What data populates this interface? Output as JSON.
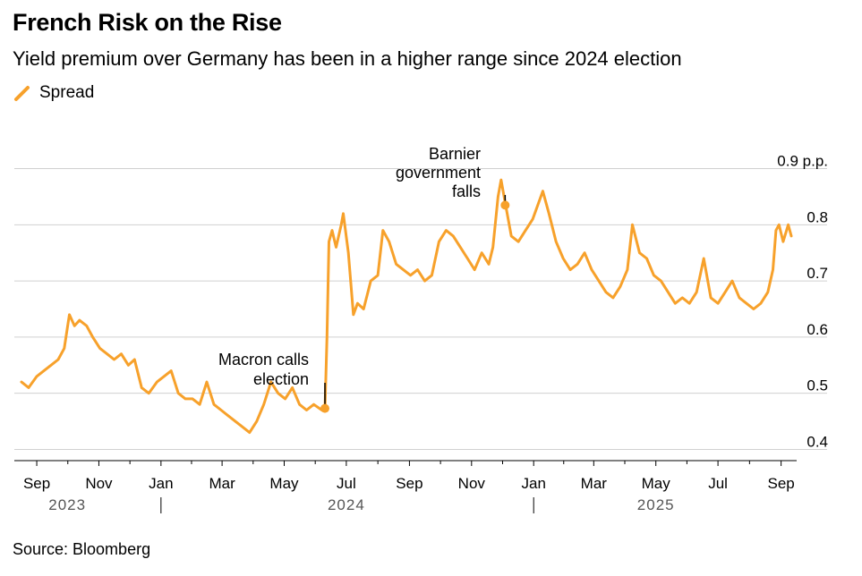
{
  "title": "French Risk on the Rise",
  "subtitle": "Yield premium over Germany has been in a higher range since 2024 election",
  "source": "Source: Bloomberg",
  "colors": {
    "series": "#F7A12B",
    "grid": "#d0d0d0",
    "axis": "#000000",
    "year_label": "#555555"
  },
  "chart_data": {
    "type": "line",
    "series": [
      {
        "name": "Spread",
        "points": [
          [
            "2023-08-17",
            0.52
          ],
          [
            "2023-08-24",
            0.51
          ],
          [
            "2023-09-01",
            0.53
          ],
          [
            "2023-09-08",
            0.54
          ],
          [
            "2023-09-15",
            0.55
          ],
          [
            "2023-09-22",
            0.56
          ],
          [
            "2023-09-28",
            0.58
          ],
          [
            "2023-10-03",
            0.64
          ],
          [
            "2023-10-08",
            0.62
          ],
          [
            "2023-10-13",
            0.63
          ],
          [
            "2023-10-20",
            0.62
          ],
          [
            "2023-10-26",
            0.6
          ],
          [
            "2023-11-02",
            0.58
          ],
          [
            "2023-11-09",
            0.57
          ],
          [
            "2023-11-16",
            0.56
          ],
          [
            "2023-11-23",
            0.57
          ],
          [
            "2023-11-30",
            0.55
          ],
          [
            "2023-12-06",
            0.56
          ],
          [
            "2023-12-13",
            0.51
          ],
          [
            "2023-12-20",
            0.5
          ],
          [
            "2023-12-28",
            0.52
          ],
          [
            "2024-01-04",
            0.53
          ],
          [
            "2024-01-11",
            0.54
          ],
          [
            "2024-01-18",
            0.5
          ],
          [
            "2024-01-25",
            0.49
          ],
          [
            "2024-02-01",
            0.49
          ],
          [
            "2024-02-08",
            0.48
          ],
          [
            "2024-02-15",
            0.52
          ],
          [
            "2024-02-22",
            0.48
          ],
          [
            "2024-02-29",
            0.47
          ],
          [
            "2024-03-07",
            0.46
          ],
          [
            "2024-03-14",
            0.45
          ],
          [
            "2024-03-21",
            0.44
          ],
          [
            "2024-03-28",
            0.43
          ],
          [
            "2024-04-04",
            0.45
          ],
          [
            "2024-04-11",
            0.48
          ],
          [
            "2024-04-18",
            0.52
          ],
          [
            "2024-04-25",
            0.5
          ],
          [
            "2024-05-02",
            0.49
          ],
          [
            "2024-05-09",
            0.51
          ],
          [
            "2024-05-16",
            0.48
          ],
          [
            "2024-05-23",
            0.47
          ],
          [
            "2024-05-30",
            0.48
          ],
          [
            "2024-06-07",
            0.47
          ],
          [
            "2024-06-10",
            0.47
          ],
          [
            "2024-06-12",
            0.6
          ],
          [
            "2024-06-14",
            0.77
          ],
          [
            "2024-06-17",
            0.79
          ],
          [
            "2024-06-21",
            0.76
          ],
          [
            "2024-06-26",
            0.8
          ],
          [
            "2024-06-28",
            0.82
          ],
          [
            "2024-07-03",
            0.75
          ],
          [
            "2024-07-08",
            0.64
          ],
          [
            "2024-07-12",
            0.66
          ],
          [
            "2024-07-18",
            0.65
          ],
          [
            "2024-07-25",
            0.7
          ],
          [
            "2024-08-01",
            0.71
          ],
          [
            "2024-08-06",
            0.79
          ],
          [
            "2024-08-12",
            0.77
          ],
          [
            "2024-08-19",
            0.73
          ],
          [
            "2024-08-26",
            0.72
          ],
          [
            "2024-09-02",
            0.71
          ],
          [
            "2024-09-09",
            0.72
          ],
          [
            "2024-09-16",
            0.7
          ],
          [
            "2024-09-23",
            0.71
          ],
          [
            "2024-09-30",
            0.77
          ],
          [
            "2024-10-07",
            0.79
          ],
          [
            "2024-10-14",
            0.78
          ],
          [
            "2024-10-21",
            0.76
          ],
          [
            "2024-10-28",
            0.74
          ],
          [
            "2024-11-04",
            0.72
          ],
          [
            "2024-11-11",
            0.75
          ],
          [
            "2024-11-18",
            0.73
          ],
          [
            "2024-11-22",
            0.76
          ],
          [
            "2024-11-27",
            0.85
          ],
          [
            "2024-11-30",
            0.88
          ],
          [
            "2024-12-04",
            0.84
          ],
          [
            "2024-12-10",
            0.78
          ],
          [
            "2024-12-17",
            0.77
          ],
          [
            "2024-12-24",
            0.79
          ],
          [
            "2024-12-31",
            0.81
          ],
          [
            "2025-01-06",
            0.84
          ],
          [
            "2025-01-10",
            0.86
          ],
          [
            "2025-01-16",
            0.82
          ],
          [
            "2025-01-23",
            0.77
          ],
          [
            "2025-01-30",
            0.74
          ],
          [
            "2025-02-06",
            0.72
          ],
          [
            "2025-02-13",
            0.73
          ],
          [
            "2025-02-20",
            0.75
          ],
          [
            "2025-02-27",
            0.72
          ],
          [
            "2025-03-06",
            0.7
          ],
          [
            "2025-03-13",
            0.68
          ],
          [
            "2025-03-20",
            0.67
          ],
          [
            "2025-03-27",
            0.69
          ],
          [
            "2025-04-03",
            0.72
          ],
          [
            "2025-04-08",
            0.8
          ],
          [
            "2025-04-15",
            0.75
          ],
          [
            "2025-04-22",
            0.74
          ],
          [
            "2025-04-29",
            0.71
          ],
          [
            "2025-05-06",
            0.7
          ],
          [
            "2025-05-13",
            0.68
          ],
          [
            "2025-05-20",
            0.66
          ],
          [
            "2025-05-27",
            0.67
          ],
          [
            "2025-06-03",
            0.66
          ],
          [
            "2025-06-10",
            0.68
          ],
          [
            "2025-06-17",
            0.74
          ],
          [
            "2025-06-24",
            0.67
          ],
          [
            "2025-07-01",
            0.66
          ],
          [
            "2025-07-08",
            0.68
          ],
          [
            "2025-07-15",
            0.7
          ],
          [
            "2025-07-22",
            0.67
          ],
          [
            "2025-07-29",
            0.66
          ],
          [
            "2025-08-05",
            0.65
          ],
          [
            "2025-08-12",
            0.66
          ],
          [
            "2025-08-19",
            0.68
          ],
          [
            "2025-08-24",
            0.72
          ],
          [
            "2025-08-27",
            0.79
          ],
          [
            "2025-08-30",
            0.8
          ],
          [
            "2025-09-03",
            0.77
          ],
          [
            "2025-09-08",
            0.8
          ],
          [
            "2025-09-11",
            0.78
          ]
        ]
      }
    ],
    "ylim": [
      0.38,
      0.92
    ],
    "y_ticks": [
      {
        "value": 0.9,
        "label": "0.9 p.p."
      },
      {
        "value": 0.8,
        "label": "0.8"
      },
      {
        "value": 0.7,
        "label": "0.7"
      },
      {
        "value": 0.6,
        "label": "0.6"
      },
      {
        "value": 0.5,
        "label": "0.5"
      },
      {
        "value": 0.4,
        "label": "0.4"
      }
    ],
    "x_ticks": [
      {
        "date": "2023-09-01",
        "label": "Sep"
      },
      {
        "date": "2023-11-01",
        "label": "Nov"
      },
      {
        "date": "2024-01-01",
        "label": "Jan"
      },
      {
        "date": "2024-03-01",
        "label": "Mar"
      },
      {
        "date": "2024-05-01",
        "label": "May"
      },
      {
        "date": "2024-07-01",
        "label": "Jul"
      },
      {
        "date": "2024-09-01",
        "label": "Sep"
      },
      {
        "date": "2024-11-01",
        "label": "Nov"
      },
      {
        "date": "2025-01-01",
        "label": "Jan"
      },
      {
        "date": "2025-03-01",
        "label": "Mar"
      },
      {
        "date": "2025-05-01",
        "label": "May"
      },
      {
        "date": "2025-07-01",
        "label": "Jul"
      },
      {
        "date": "2025-09-01",
        "label": "Sep"
      }
    ],
    "year_labels": [
      {
        "date": "2023-10-01",
        "label": "2023"
      },
      {
        "date": "2024-07-01",
        "label": "2024"
      },
      {
        "date": "2025-05-01",
        "label": "2025"
      }
    ],
    "year_dividers": [
      "2024-01-01",
      "2025-01-01"
    ],
    "annotations": [
      {
        "date": "2024-06-10",
        "value": 0.473,
        "lines": [
          "Macron calls",
          "election"
        ]
      },
      {
        "date": "2024-12-04",
        "value": 0.835,
        "lines": [
          "Barnier",
          "government",
          "falls"
        ]
      }
    ],
    "grid": true,
    "legend_position": "top-left"
  }
}
